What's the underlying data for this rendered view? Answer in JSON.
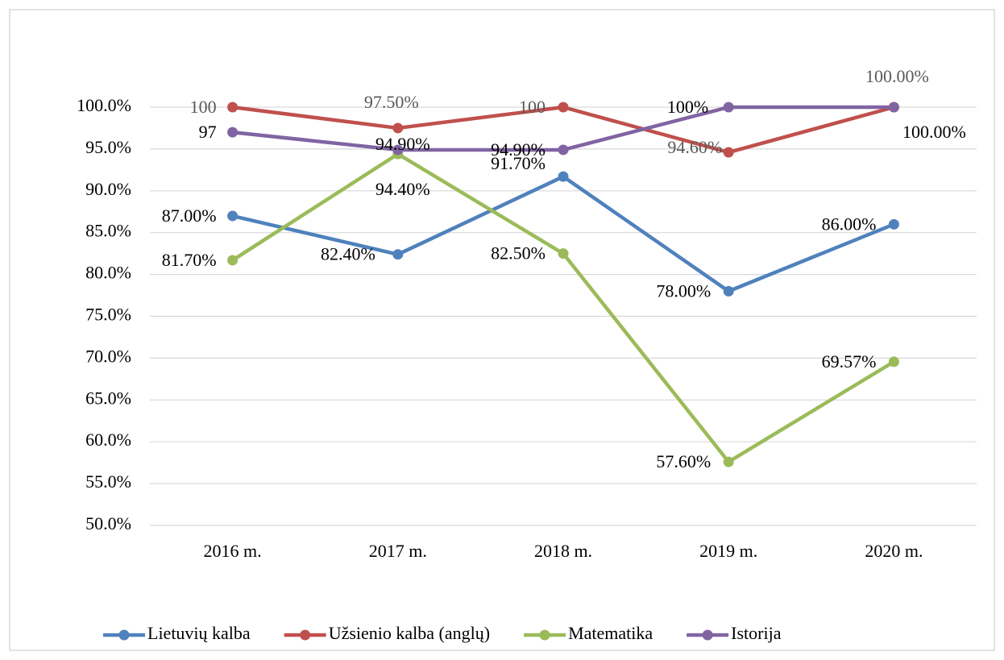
{
  "chart_data": {
    "type": "line",
    "categories": [
      "2016 m.",
      "2017 m.",
      "2018 m.",
      "2019 m.",
      "2020 m."
    ],
    "series": [
      {
        "name": "Lietuvių kalba",
        "color": "#4f81bd",
        "values": [
          87,
          82.4,
          91.7,
          78,
          86
        ],
        "value_labels": [
          "87.00%",
          "82.40%",
          "91.70%",
          "78.00%",
          "86.00%"
        ]
      },
      {
        "name": "Užsienio kalba (anglų)",
        "color": "#c0504d",
        "values": [
          100,
          97.5,
          100,
          94.6,
          100
        ],
        "value_labels": [
          "100",
          "97.50%",
          "100",
          "94.60%",
          "100.00%"
        ]
      },
      {
        "name": "Matematika",
        "color": "#9bbb59",
        "values": [
          81.7,
          94.4,
          82.5,
          57.6,
          69.57
        ],
        "value_labels": [
          "81.70%",
          "94.40%",
          "82.50%",
          "57.60%",
          "69.57%"
        ]
      },
      {
        "name": "Istorija",
        "color": "#8064a2",
        "values": [
          97,
          94.9,
          94.9,
          100,
          100
        ],
        "value_labels": [
          "97",
          "94.90%",
          "94.90%",
          "100%",
          "100.00%"
        ]
      }
    ],
    "ylim": [
      50,
      100
    ],
    "yticks": [
      {
        "value": 50,
        "label": "50.0%"
      },
      {
        "value": 55,
        "label": "55.0%"
      },
      {
        "value": 60,
        "label": "60.0%"
      },
      {
        "value": 65,
        "label": "65.0%"
      },
      {
        "value": 70,
        "label": "70.0%"
      },
      {
        "value": 75,
        "label": "75.0%"
      },
      {
        "value": 80,
        "label": "80.0%"
      },
      {
        "value": 85,
        "label": "85.0%"
      },
      {
        "value": 90,
        "label": "90.0%"
      },
      {
        "value": 95,
        "label": "95.0%"
      },
      {
        "value": 100,
        "label": "100.0%"
      }
    ],
    "grid": true,
    "legend": "bottom"
  }
}
